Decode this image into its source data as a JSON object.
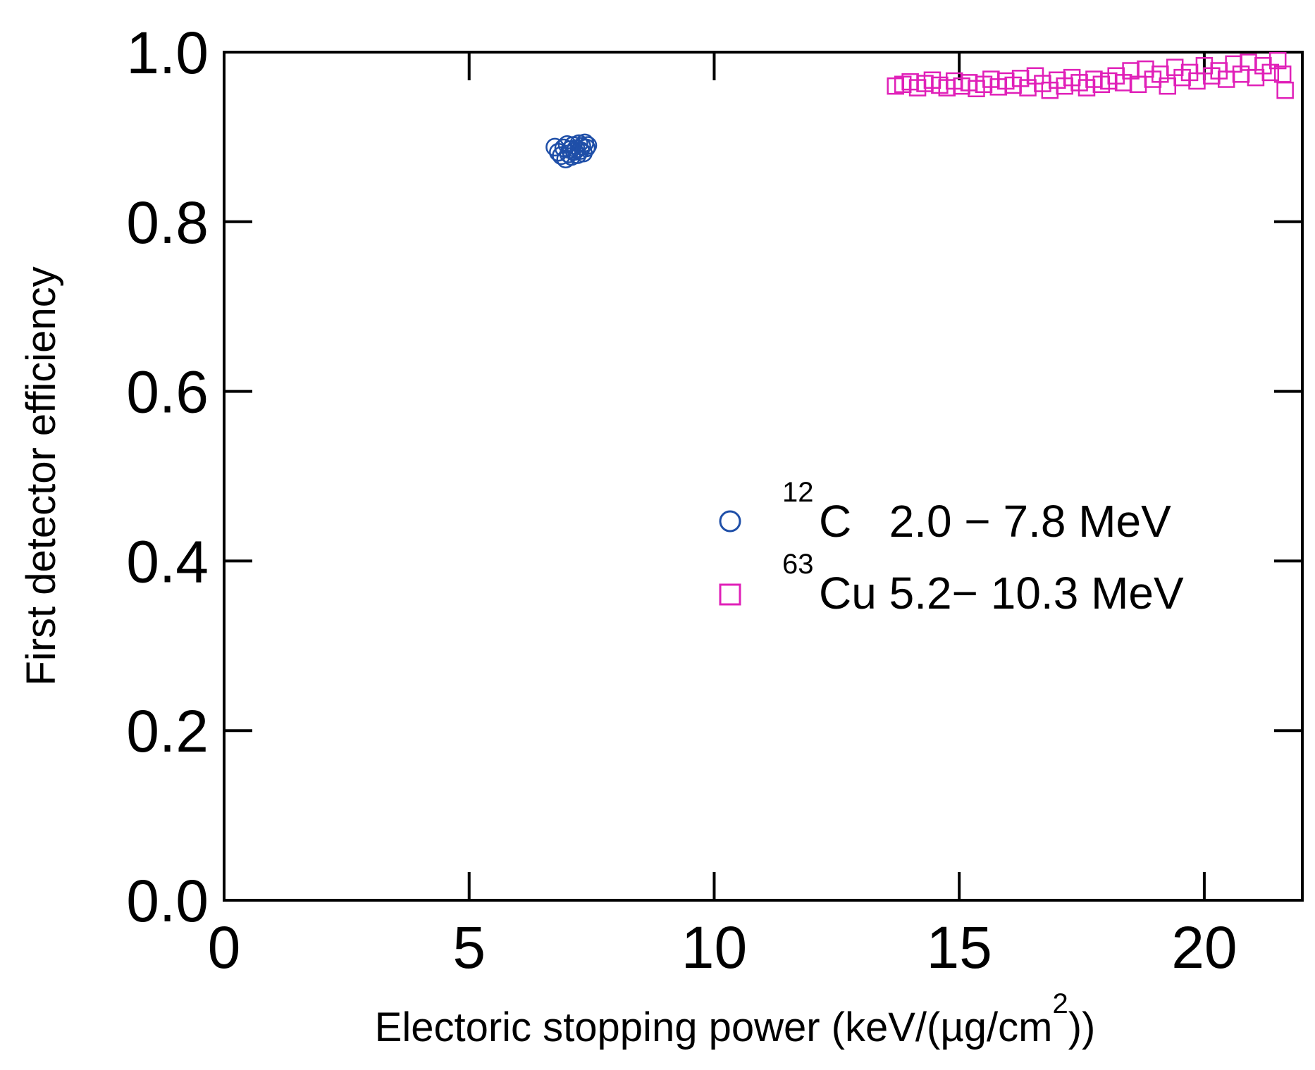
{
  "chart_data": {
    "type": "scatter",
    "xlabel": "Electoric stopping power (keV/(µg/cm",
    "xlabel_sup": "2",
    "xlabel_end": "))",
    "ylabel": "First detector efficiency",
    "xlim": [
      0,
      22
    ],
    "ylim": [
      0,
      1
    ],
    "x_ticks": [
      "0",
      "5",
      "10",
      "15",
      "20"
    ],
    "y_ticks": [
      "0.0",
      "0.2",
      "0.4",
      "0.6",
      "0.8",
      "1.0"
    ],
    "grid": false,
    "legend_position": "center-right",
    "series": [
      {
        "name_sup": "12",
        "name": "C   2.0 − 7.8 MeV",
        "marker": "circle",
        "color": "#1f4fa8",
        "points": [
          [
            6.75,
            0.888
          ],
          [
            6.82,
            0.882
          ],
          [
            6.88,
            0.878
          ],
          [
            6.93,
            0.887
          ],
          [
            6.97,
            0.874
          ],
          [
            7.0,
            0.891
          ],
          [
            7.03,
            0.88
          ],
          [
            7.06,
            0.885
          ],
          [
            7.09,
            0.877
          ],
          [
            7.12,
            0.89
          ],
          [
            7.15,
            0.883
          ],
          [
            7.18,
            0.886
          ],
          [
            7.21,
            0.879
          ],
          [
            7.24,
            0.892
          ],
          [
            7.27,
            0.884
          ],
          [
            7.3,
            0.889
          ],
          [
            7.33,
            0.881
          ],
          [
            7.36,
            0.893
          ],
          [
            7.39,
            0.887
          ],
          [
            7.42,
            0.89
          ]
        ]
      },
      {
        "name_sup": "63",
        "name": "Cu 5.2− 10.3 MeV",
        "marker": "square",
        "color": "#e020b8",
        "points": [
          [
            13.7,
            0.96
          ],
          [
            13.85,
            0.962
          ],
          [
            14.0,
            0.965
          ],
          [
            14.15,
            0.958
          ],
          [
            14.3,
            0.963
          ],
          [
            14.45,
            0.967
          ],
          [
            14.6,
            0.961
          ],
          [
            14.75,
            0.958
          ],
          [
            14.9,
            0.966
          ],
          [
            15.05,
            0.96
          ],
          [
            15.2,
            0.964
          ],
          [
            15.35,
            0.957
          ],
          [
            15.5,
            0.962
          ],
          [
            15.65,
            0.968
          ],
          [
            15.8,
            0.959
          ],
          [
            15.95,
            0.966
          ],
          [
            16.1,
            0.961
          ],
          [
            16.25,
            0.969
          ],
          [
            16.4,
            0.958
          ],
          [
            16.55,
            0.972
          ],
          [
            16.7,
            0.963
          ],
          [
            16.85,
            0.955
          ],
          [
            17.0,
            0.967
          ],
          [
            17.15,
            0.96
          ],
          [
            17.3,
            0.97
          ],
          [
            17.45,
            0.964
          ],
          [
            17.6,
            0.958
          ],
          [
            17.75,
            0.968
          ],
          [
            17.9,
            0.962
          ],
          [
            18.05,
            0.966
          ],
          [
            18.2,
            0.972
          ],
          [
            18.35,
            0.964
          ],
          [
            18.5,
            0.978
          ],
          [
            18.65,
            0.962
          ],
          [
            18.8,
            0.98
          ],
          [
            18.95,
            0.968
          ],
          [
            19.1,
            0.974
          ],
          [
            19.25,
            0.96
          ],
          [
            19.4,
            0.982
          ],
          [
            19.55,
            0.97
          ],
          [
            19.7,
            0.976
          ],
          [
            19.85,
            0.966
          ],
          [
            20.0,
            0.984
          ],
          [
            20.15,
            0.972
          ],
          [
            20.3,
            0.978
          ],
          [
            20.45,
            0.968
          ],
          [
            20.6,
            0.986
          ],
          [
            20.75,
            0.974
          ],
          [
            20.9,
            0.988
          ],
          [
            21.05,
            0.97
          ],
          [
            21.2,
            0.984
          ],
          [
            21.35,
            0.976
          ],
          [
            21.5,
            0.99
          ],
          [
            21.6,
            0.974
          ],
          [
            21.65,
            0.955
          ]
        ]
      }
    ]
  }
}
